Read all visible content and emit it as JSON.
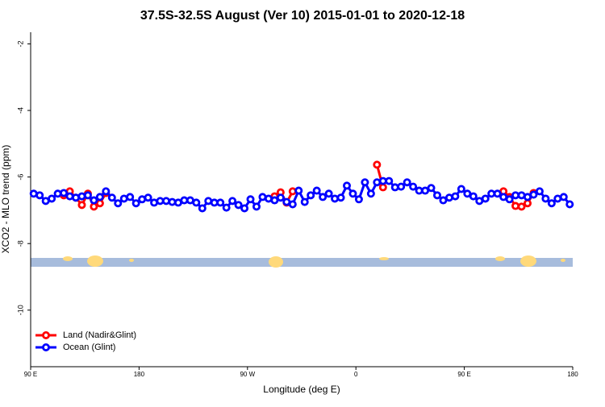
{
  "chart_data": {
    "type": "line",
    "title": "37.5S-32.5S August (Ver 10)   2015-01-01 to 2020-12-18",
    "x_label": "Longitude (deg E)",
    "y_label": "XCO2 - MLO trend (ppm)",
    "x": [
      92.5,
      97.5,
      102.5,
      107.5,
      112.5,
      117.5,
      122.5,
      127.5,
      132.5,
      137.5,
      142.5,
      147.5,
      152.5,
      157.5,
      162.5,
      167.5,
      172.5,
      177.5,
      182.5,
      187.5,
      192.5,
      197.5,
      202.5,
      207.5,
      212.5,
      217.5,
      222.5,
      227.5,
      232.5,
      237.5,
      242.5,
      247.5,
      252.5,
      257.5,
      262.5,
      267.5,
      272.5,
      277.5,
      282.5,
      287.5,
      292.5,
      297.5,
      302.5,
      307.5,
      312.5,
      317.5,
      322.5,
      327.5,
      332.5,
      337.5,
      342.5,
      347.5,
      352.5,
      357.5,
      362.5,
      367.5,
      372.5,
      377.5,
      382.5,
      387.5,
      392.5,
      397.5,
      402.5,
      407.5,
      412.5,
      417.5,
      422.5,
      427.5,
      432.5,
      437.5,
      442.5,
      447.5,
      452.5,
      457.5,
      462.5,
      467.5,
      472.5,
      477.5,
      482.5,
      487.5,
      492.5,
      497.5,
      502.5,
      507.5,
      512.5,
      517.5,
      522.5,
      527.5,
      532.5,
      537.5
    ],
    "series": [
      {
        "name": "Land (Nadir&Glint)",
        "color": "#ff0000",
        "values": [
          null,
          null,
          null,
          null,
          null,
          -6.55,
          -6.43,
          -6.62,
          -6.84,
          -6.5,
          -6.89,
          -6.79,
          -6.48,
          null,
          null,
          null,
          null,
          null,
          null,
          null,
          null,
          null,
          null,
          null,
          null,
          null,
          null,
          null,
          null,
          null,
          null,
          null,
          null,
          null,
          null,
          null,
          null,
          null,
          null,
          null,
          -6.58,
          -6.46,
          -6.77,
          -6.43,
          null,
          null,
          null,
          null,
          null,
          null,
          null,
          null,
          null,
          null,
          null,
          null,
          null,
          -5.63,
          -6.31,
          null,
          null,
          null,
          null,
          null,
          null,
          null,
          null,
          null,
          null,
          null,
          null,
          null,
          null,
          null,
          null,
          null,
          null,
          null,
          -6.43,
          -6.6,
          -6.87,
          -6.89,
          -6.79,
          -6.48,
          null,
          null,
          null,
          null,
          null,
          null
        ]
      },
      {
        "name": "Ocean (Glint)",
        "color": "#0000ff",
        "values": [
          -6.5,
          -6.55,
          -6.72,
          -6.65,
          -6.5,
          -6.48,
          -6.58,
          -6.62,
          -6.58,
          -6.55,
          -6.7,
          -6.6,
          -6.43,
          -6.62,
          -6.79,
          -6.65,
          -6.6,
          -6.79,
          -6.67,
          -6.62,
          -6.77,
          -6.72,
          -6.72,
          -6.75,
          -6.77,
          -6.7,
          -6.7,
          -6.77,
          -6.94,
          -6.72,
          -6.77,
          -6.77,
          -6.92,
          -6.72,
          -6.84,
          -6.94,
          -6.67,
          -6.89,
          -6.6,
          -6.65,
          -6.7,
          -6.62,
          -6.75,
          -6.82,
          -6.41,
          -6.75,
          -6.55,
          -6.41,
          -6.6,
          -6.5,
          -6.65,
          -6.62,
          -6.26,
          -6.5,
          -6.67,
          -6.16,
          -6.5,
          -6.16,
          -6.12,
          -6.12,
          -6.31,
          -6.29,
          -6.16,
          -6.29,
          -6.41,
          -6.41,
          -6.33,
          -6.55,
          -6.7,
          -6.62,
          -6.58,
          -6.36,
          -6.5,
          -6.58,
          -6.72,
          -6.65,
          -6.5,
          -6.5,
          -6.6,
          -6.67,
          -6.55,
          -6.55,
          -6.6,
          -6.53,
          -6.43,
          -6.65,
          -6.79,
          -6.65,
          -6.6,
          -6.82
        ]
      }
    ],
    "xlim": [
      90,
      540
    ],
    "xticks": [
      {
        "value": 90,
        "label": "90 E"
      },
      {
        "value": 180,
        "label": "180"
      },
      {
        "value": 270,
        "label": "90 W"
      },
      {
        "value": 360,
        "label": "0"
      },
      {
        "value": 450,
        "label": "90 E"
      },
      {
        "value": 540,
        "label": "180"
      }
    ],
    "ylim": [
      -11.7,
      -1.65
    ],
    "yticks": [
      -10,
      -8,
      -6,
      -4,
      -2
    ],
    "legend": "bottom-left"
  }
}
